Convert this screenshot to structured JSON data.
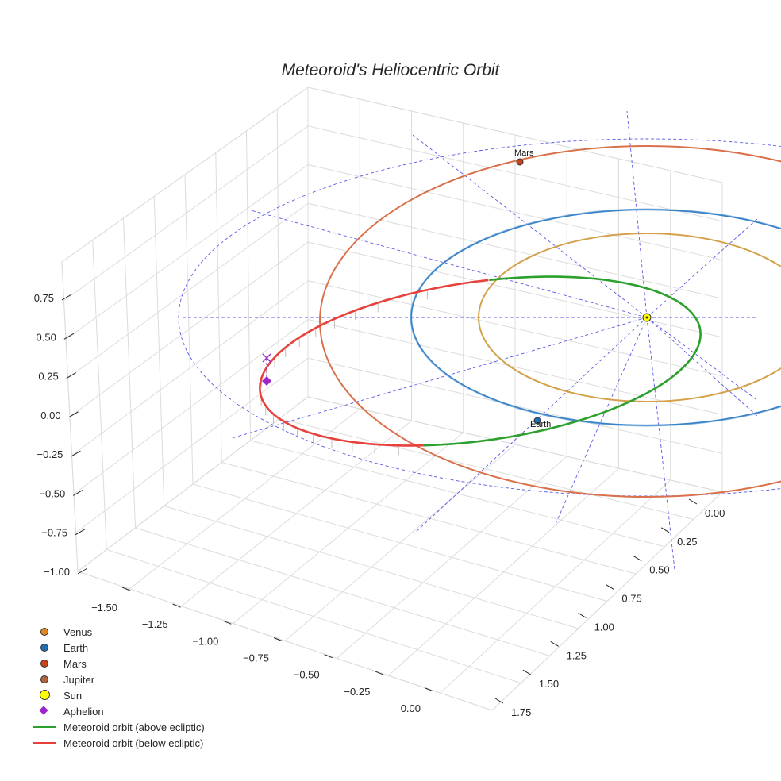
{
  "title": "Meteoroid's Heliocentric Orbit",
  "chart_data": {
    "type": "line",
    "projection": "3d",
    "title": "Meteoroid's Heliocentric Orbit",
    "x_ticks": [
      "−1.50",
      "−1.25",
      "−1.00",
      "−0.75",
      "−0.50",
      "−0.25",
      "0.00"
    ],
    "y_ticks": [
      "0.00",
      "0.25",
      "0.50",
      "0.75",
      "1.00",
      "1.25",
      "1.50",
      "1.75"
    ],
    "z_ticks": [
      "0.75",
      "0.50",
      "0.25",
      "0.00",
      "−0.25",
      "−0.50",
      "−0.75",
      "−1.00"
    ],
    "planets": [
      {
        "name": "Venus",
        "a_au": 0.72,
        "color": "#d4a04a",
        "marker_color": "#e08a1c"
      },
      {
        "name": "Earth",
        "a_au": 1.0,
        "color": "#3a82c8",
        "marker_color": "#1f6fb4",
        "label": "Earth"
      },
      {
        "name": "Mars",
        "a_au": 1.52,
        "color": "#d9714a",
        "marker_color": "#c9421a",
        "label": "Mars"
      },
      {
        "name": "Jupiter",
        "a_au": 5.2,
        "color": "#b0653a",
        "marker_color": "#b0653a"
      }
    ],
    "sun": {
      "name": "Sun",
      "x": 0,
      "y": 0,
      "z": 0,
      "color": "#ffff00"
    },
    "aphelion": {
      "name": "Aphelion",
      "z": 0.25,
      "color": "#9b27c9"
    },
    "series": [
      {
        "name": "Meteoroid orbit (above ecliptic)",
        "color": "#2ca02c",
        "z_range": [
          0,
          0.1
        ]
      },
      {
        "name": "Meteoroid orbit (below ecliptic)",
        "color": "#e8413c",
        "z_range": [
          -0.05,
          0
        ]
      }
    ]
  },
  "legend": [
    {
      "label": "Venus",
      "kind": "dot",
      "color": "#e08a1c"
    },
    {
      "label": "Earth",
      "kind": "dot",
      "color": "#1f6fb4"
    },
    {
      "label": "Mars",
      "kind": "dot",
      "color": "#c9421a"
    },
    {
      "label": "Jupiter",
      "kind": "dot",
      "color": "#b0653a"
    },
    {
      "label": "Sun",
      "kind": "bigdot",
      "color": "#ffff00"
    },
    {
      "label": "Aphelion",
      "kind": "diamond",
      "color": "#9b27c9"
    },
    {
      "label": "Meteoroid orbit (above ecliptic)",
      "kind": "line",
      "color": "#2ca02c"
    },
    {
      "label": "Meteoroid orbit (below ecliptic)",
      "kind": "line",
      "color": "#e8413c"
    }
  ]
}
